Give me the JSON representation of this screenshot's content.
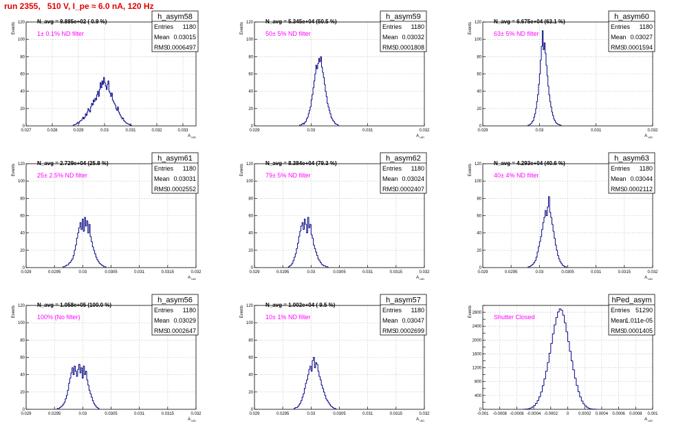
{
  "run_title": "run 2355,   510 V, I_pe ≈ 6.0 nA, 120 Hz",
  "colors": {
    "hist": "#000080",
    "annotation": "#ff00ff",
    "title": "#e00000",
    "grid": "#b8b8b8"
  },
  "chart_data": [
    {
      "type": "bar",
      "title": "h_asym58",
      "stats": [
        [
          "Entries",
          "1180"
        ],
        [
          "Mean",
          "0.03015"
        ],
        [
          "RMS",
          "0.0006497"
        ]
      ],
      "navg": "N_avg = 9.885e+02 ( 0.9 %)",
      "filter": "1± 0.1% ND filter",
      "ylabel": "Events",
      "xlabel": "A_UID",
      "xlim": [
        0.027,
        0.0335
      ],
      "ylim": [
        0,
        120
      ],
      "xticks": [
        0.027,
        0.028,
        0.029,
        0.03,
        0.031,
        0.032,
        0.033
      ],
      "xtick_labels": [
        "0.027",
        "0.028",
        "0.029",
        "0.03",
        "0.031",
        "0.032",
        "0.033"
      ],
      "yticks": [
        0,
        20,
        40,
        60,
        80,
        100,
        120
      ],
      "ytick_labels": [
        "0",
        "20",
        "40",
        "60",
        "80",
        "100",
        "120"
      ],
      "bin_start": 0.0288,
      "bin_width": 3.33e-05,
      "values": [
        1,
        1,
        2,
        2,
        3,
        4,
        3,
        5,
        6,
        6,
        8,
        10,
        8,
        10,
        14,
        12,
        16,
        20,
        18,
        16,
        22,
        26,
        24,
        30,
        28,
        32,
        30,
        36,
        40,
        34,
        42,
        50,
        44,
        52,
        48,
        56,
        50,
        46,
        42,
        48,
        52,
        40,
        38,
        34,
        38,
        30,
        28,
        26,
        24,
        20,
        18,
        22,
        16,
        14,
        12,
        10,
        8,
        9,
        6,
        5,
        4,
        3,
        3,
        2,
        2,
        1,
        1
      ]
    },
    {
      "type": "bar",
      "title": "h_asym59",
      "stats": [
        [
          "Entries",
          "1180"
        ],
        [
          "Mean",
          "0.03032"
        ],
        [
          "RMS",
          "0.0001808"
        ]
      ],
      "navg": "N_avg = 5.345e+04 (50.5 %)",
      "filter": "50± 5% ND filter",
      "ylabel": "Events",
      "xlabel": "A_UID",
      "xlim": [
        0.029,
        0.032
      ],
      "ylim": [
        0,
        120
      ],
      "xticks": [
        0.029,
        0.03,
        0.031,
        0.032
      ],
      "xtick_labels": [
        "0.029",
        "0.03",
        "0.031",
        "0.032"
      ],
      "yticks": [
        0,
        20,
        40,
        60,
        80,
        100,
        120
      ],
      "ytick_labels": [
        "0",
        "20",
        "40",
        "60",
        "80",
        "100",
        "120"
      ],
      "bin_start": 0.0298,
      "bin_width": 1.667e-05,
      "values": [
        1,
        1,
        2,
        3,
        2,
        4,
        5,
        8,
        10,
        14,
        18,
        22,
        30,
        36,
        44,
        52,
        60,
        70,
        66,
        72,
        78,
        74,
        80,
        68,
        62,
        56,
        48,
        40,
        34,
        26,
        22,
        18,
        14,
        10,
        8,
        6,
        5,
        3,
        2,
        2,
        1
      ]
    },
    {
      "type": "bar",
      "title": "h_asym60",
      "stats": [
        [
          "Entries",
          "1180"
        ],
        [
          "Mean",
          "0.03027"
        ],
        [
          "RMS",
          "0.0001594"
        ]
      ],
      "navg": "N_avg = 6.675e+04 (63.1 %)",
      "filter": "63± 5% ND filter",
      "ylabel": "Events",
      "xlabel": "A_UID",
      "xlim": [
        0.029,
        0.032
      ],
      "ylim": [
        0,
        120
      ],
      "xticks": [
        0.029,
        0.03,
        0.031,
        0.032
      ],
      "xtick_labels": [
        "0.029",
        "0.03",
        "0.031",
        "0.032"
      ],
      "yticks": [
        0,
        20,
        40,
        60,
        80,
        100,
        120
      ],
      "ytick_labels": [
        "0",
        "20",
        "40",
        "60",
        "80",
        "100",
        "120"
      ],
      "bin_start": 0.0298,
      "bin_width": 1.667e-05,
      "values": [
        1,
        1,
        2,
        3,
        5,
        6,
        10,
        14,
        20,
        28,
        36,
        48,
        60,
        76,
        92,
        110,
        88,
        96,
        84,
        70,
        58,
        46,
        36,
        28,
        22,
        16,
        12,
        8,
        6,
        4,
        3,
        2,
        2,
        1,
        1
      ]
    },
    {
      "type": "bar",
      "title": "h_asym61",
      "stats": [
        [
          "Entries",
          "1180"
        ],
        [
          "Mean",
          "0.03031"
        ],
        [
          "RMS",
          "0.0002552"
        ]
      ],
      "navg": "N_avg = 2.729e+04 (25.8 %)",
      "filter": "25± 2.5% ND filter",
      "ylabel": "Events",
      "xlabel": "A_UID",
      "xlim": [
        0.029,
        0.032
      ],
      "ylim": [
        0,
        120
      ],
      "xticks": [
        0.029,
        0.0295,
        0.03,
        0.0305,
        0.031,
        0.0315,
        0.032
      ],
      "xtick_labels": [
        "0.029",
        "0.0295",
        "0.03",
        "0.0305",
        "0.031",
        "0.0315",
        "0.032"
      ],
      "yticks": [
        0,
        20,
        40,
        60,
        80,
        100,
        120
      ],
      "ytick_labels": [
        "0",
        "20",
        "40",
        "60",
        "80",
        "100",
        "120"
      ],
      "bin_start": 0.02965,
      "bin_width": 2e-05,
      "values": [
        1,
        1,
        2,
        3,
        3,
        5,
        6,
        8,
        10,
        14,
        20,
        26,
        34,
        40,
        46,
        52,
        44,
        56,
        42,
        58,
        48,
        54,
        40,
        50,
        36,
        30,
        24,
        20,
        16,
        12,
        9,
        7,
        5,
        4,
        3,
        2,
        1,
        1
      ]
    },
    {
      "type": "bar",
      "title": "h_asym62",
      "stats": [
        [
          "Entries",
          "1180"
        ],
        [
          "Mean",
          "0.03024"
        ],
        [
          "RMS",
          "0.0002407"
        ]
      ],
      "navg": "N_avg = 8.384e+04 (79.3 %)",
      "filter": "79± 5% ND filter",
      "ylabel": "Events",
      "xlabel": "A_UID",
      "xlim": [
        0.029,
        0.032
      ],
      "ylim": [
        0,
        120
      ],
      "xticks": [
        0.029,
        0.0295,
        0.03,
        0.0305,
        0.031,
        0.0315,
        0.032
      ],
      "xtick_labels": [
        "0.029",
        "0.0295",
        "0.03",
        "0.0305",
        "0.031",
        "0.0315",
        "0.032"
      ],
      "yticks": [
        0,
        20,
        40,
        60,
        80,
        100,
        120
      ],
      "ytick_labels": [
        "0",
        "20",
        "40",
        "60",
        "80",
        "100",
        "120"
      ],
      "bin_start": 0.0296,
      "bin_width": 2e-05,
      "values": [
        1,
        2,
        3,
        5,
        8,
        12,
        16,
        22,
        28,
        36,
        42,
        48,
        52,
        44,
        56,
        50,
        40,
        58,
        46,
        50,
        38,
        34,
        26,
        22,
        18,
        14,
        10,
        8,
        6,
        4,
        3,
        2,
        2,
        1,
        1
      ]
    },
    {
      "type": "bar",
      "title": "h_asym63",
      "stats": [
        [
          "Entries",
          "1180"
        ],
        [
          "Mean",
          "0.03044"
        ],
        [
          "RMS",
          "0.0002112"
        ]
      ],
      "navg": "N_avg = 4.293e+04 (40.6 %)",
      "filter": "40± 4% ND filter",
      "ylabel": "Events",
      "xlabel": "A_UID",
      "xlim": [
        0.029,
        0.032
      ],
      "ylim": [
        0,
        120
      ],
      "xticks": [
        0.029,
        0.0295,
        0.03,
        0.0305,
        0.031,
        0.0315,
        0.032
      ],
      "xtick_labels": [
        "0.029",
        "0.0295",
        "0.03",
        "0.0305",
        "0.031",
        "0.0315",
        "0.032"
      ],
      "yticks": [
        0,
        20,
        40,
        60,
        80,
        100,
        120
      ],
      "ytick_labels": [
        "0",
        "20",
        "40",
        "60",
        "80",
        "100",
        "120"
      ],
      "bin_start": 0.0298,
      "bin_width": 2e-05,
      "values": [
        1,
        1,
        2,
        3,
        4,
        6,
        8,
        12,
        18,
        24,
        30,
        36,
        44,
        52,
        58,
        66,
        60,
        70,
        82,
        64,
        58,
        50,
        42,
        34,
        26,
        20,
        14,
        10,
        7,
        5,
        3,
        2,
        1,
        1
      ]
    },
    {
      "type": "bar",
      "title": "h_asym56",
      "stats": [
        [
          "Entries",
          "1180"
        ],
        [
          "Mean",
          "0.03029"
        ],
        [
          "RMS",
          "0.0002647"
        ]
      ],
      "navg": "N_avg = 1.058e+05 (100.0 %)",
      "filter": "100% (No filter)",
      "ylabel": "Events",
      "xlabel": "A_UID",
      "xlim": [
        0.029,
        0.032
      ],
      "ylim": [
        0,
        120
      ],
      "xticks": [
        0.029,
        0.0295,
        0.03,
        0.0305,
        0.031,
        0.0315,
        0.032
      ],
      "xtick_labels": [
        "0.029",
        "0.0295",
        "0.03",
        "0.0305",
        "0.031",
        "0.0315",
        "0.032"
      ],
      "yticks": [
        0,
        20,
        40,
        60,
        80,
        100,
        120
      ],
      "ytick_labels": [
        "0",
        "20",
        "40",
        "60",
        "80",
        "100",
        "120"
      ],
      "bin_start": 0.02955,
      "bin_width": 2e-05,
      "values": [
        1,
        1,
        2,
        3,
        4,
        6,
        8,
        12,
        16,
        22,
        30,
        36,
        42,
        48,
        40,
        50,
        44,
        38,
        46,
        52,
        42,
        48,
        36,
        50,
        40,
        44,
        34,
        28,
        22,
        18,
        14,
        10,
        7,
        5,
        3,
        2,
        1
      ]
    },
    {
      "type": "bar",
      "title": "h_asym57",
      "stats": [
        [
          "Entries",
          "1180"
        ],
        [
          "Mean",
          "0.03047"
        ],
        [
          "RMS",
          "0.0002699"
        ]
      ],
      "navg": "N_avg = 1.002e+04 ( 9.5 %)",
      "filter": "10± 1% ND filter",
      "ylabel": "Events",
      "xlabel": "A_UID",
      "xlim": [
        0.029,
        0.032
      ],
      "ylim": [
        0,
        120
      ],
      "xticks": [
        0.029,
        0.0295,
        0.03,
        0.0305,
        0.031,
        0.0315,
        0.032
      ],
      "xtick_labels": [
        "0.029",
        "0.0295",
        "0.03",
        "0.0305",
        "0.031",
        "0.0315",
        "0.032"
      ],
      "yticks": [
        0,
        20,
        40,
        60,
        80,
        100,
        120
      ],
      "ytick_labels": [
        "0",
        "20",
        "40",
        "60",
        "80",
        "100",
        "120"
      ],
      "bin_start": 0.0297,
      "bin_width": 2e-05,
      "values": [
        1,
        2,
        2,
        3,
        5,
        7,
        10,
        14,
        18,
        24,
        30,
        34,
        40,
        46,
        50,
        44,
        56,
        60,
        48,
        54,
        52,
        44,
        38,
        34,
        28,
        24,
        20,
        16,
        12,
        10,
        8,
        6,
        4,
        3,
        2,
        1,
        1
      ]
    },
    {
      "type": "bar",
      "title": "hPed_asym",
      "stats": [
        [
          "Entries",
          "51290"
        ],
        [
          "Mean",
          "1.011e-05"
        ],
        [
          "RMS",
          "0.0001405"
        ]
      ],
      "navg": "",
      "filter": "Shutter Closed",
      "ylabel": "Events",
      "xlabel": "A_UID",
      "xlim": [
        -0.001,
        0.001
      ],
      "ylim": [
        0,
        3000
      ],
      "xticks": [
        -0.001,
        -0.0008,
        -0.0006,
        -0.0004,
        -0.0002,
        0,
        0.0002,
        0.0004,
        0.0006,
        0.0008,
        0.001
      ],
      "xtick_labels": [
        "-0.001",
        "-0.0008",
        "-0.0006",
        "-0.0004",
        "-0.0002",
        "0",
        "0.0002",
        "0.0004",
        "0.0006",
        "0.0008",
        "0.001"
      ],
      "yticks": [
        0,
        200,
        400,
        600,
        800,
        1000,
        1200,
        1400,
        1600,
        1800,
        2000,
        2200,
        2400,
        2600,
        2800,
        3000
      ],
      "ytick_labels": [
        "0",
        "",
        "400",
        "",
        "800",
        "",
        "1200",
        "",
        "1600",
        "",
        "2000",
        "",
        "2400",
        "",
        "2800",
        ""
      ],
      "bin_start": -0.00052,
      "bin_width": 2e-05,
      "values": [
        2,
        5,
        10,
        20,
        40,
        70,
        110,
        170,
        250,
        360,
        500,
        680,
        880,
        1100,
        1350,
        1620,
        1900,
        2180,
        2440,
        2650,
        2810,
        2900,
        2860,
        2720,
        2500,
        2240,
        1960,
        1680,
        1400,
        1140,
        900,
        690,
        510,
        360,
        240,
        160,
        100,
        60,
        32,
        16,
        8,
        4,
        2
      ]
    }
  ]
}
